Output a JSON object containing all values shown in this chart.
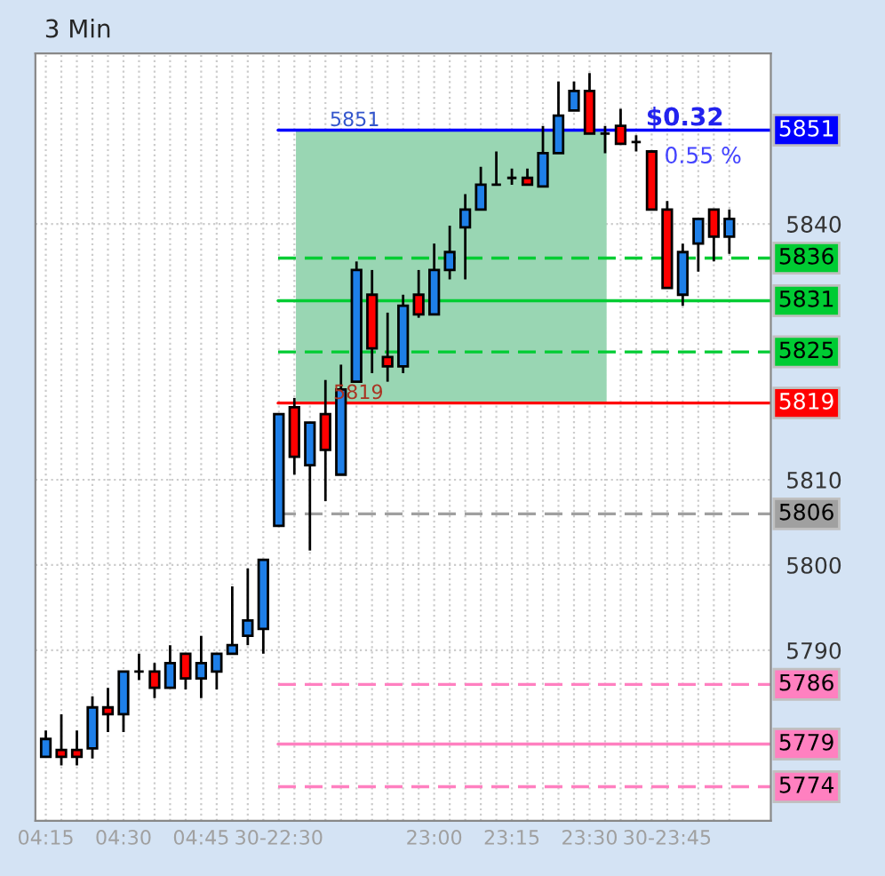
{
  "chart_data": {
    "type": "candlestick",
    "title": "3 Min",
    "categories": [
      "04:15",
      null,
      null,
      null,
      null,
      "04:30",
      null,
      null,
      null,
      null,
      "04:45",
      null,
      null,
      null,
      null,
      "30-22:30",
      null,
      null,
      null,
      null,
      null,
      null,
      null,
      null,
      null,
      "23:00",
      null,
      null,
      null,
      null,
      "23:15",
      null,
      null,
      null,
      null,
      "23:30",
      null,
      null,
      null,
      null,
      "30-23:45",
      null,
      null,
      null,
      null
    ],
    "ohlc": [
      [
        5777.5,
        5780.6,
        5777.5,
        5779.6
      ],
      [
        5778.3,
        5782.5,
        5776.5,
        5777.5
      ],
      [
        5778.3,
        5780.6,
        5776.5,
        5777.5
      ],
      [
        5778.5,
        5784.6,
        5777.3,
        5783.3
      ],
      [
        5783.3,
        5785.6,
        5780.4,
        5782.5
      ],
      [
        5782.5,
        5787.5,
        5780.4,
        5787.5
      ],
      [
        5787.5,
        5789.6,
        5786.5,
        5787.5
      ],
      [
        5787.5,
        5788.5,
        5784.4,
        5785.6
      ],
      [
        5785.6,
        5790.6,
        5785.6,
        5788.5
      ],
      [
        5789.6,
        5789.6,
        5785.4,
        5786.7
      ],
      [
        5786.7,
        5791.7,
        5784.4,
        5788.5
      ],
      [
        5787.5,
        5789.6,
        5785.4,
        5789.6
      ],
      [
        5789.6,
        5797.5,
        5789.6,
        5790.6
      ],
      [
        5791.7,
        5799.6,
        5790.6,
        5793.5
      ],
      [
        5792.5,
        5800.6,
        5789.6,
        5800.6
      ],
      [
        5804.6,
        5817.7,
        5804.6,
        5817.7
      ],
      [
        5818.5,
        5819.6,
        5810.6,
        5812.7
      ],
      [
        5811.7,
        5816.7,
        5801.7,
        5816.7
      ],
      [
        5817.7,
        5821.7,
        5807.5,
        5813.5
      ],
      [
        5810.6,
        5823.5,
        5810.6,
        5820.6
      ],
      [
        5821.5,
        5835.6,
        5821.5,
        5834.6
      ],
      [
        5831.7,
        5834.6,
        5822.5,
        5825.4
      ],
      [
        5824.4,
        5829.6,
        5821.5,
        5823.3
      ],
      [
        5823.3,
        5831.7,
        5822.5,
        5830.4
      ],
      [
        5831.7,
        5834.6,
        5829.0,
        5829.4
      ],
      [
        5829.4,
        5837.7,
        5829.4,
        5834.6
      ],
      [
        5834.6,
        5839.8,
        5833.5,
        5836.7
      ],
      [
        5839.6,
        5843.5,
        5833.5,
        5841.7
      ],
      [
        5841.7,
        5846.7,
        5841.7,
        5844.6
      ],
      [
        5844.6,
        5848.5,
        5844.6,
        5844.6
      ],
      [
        5845.4,
        5846.5,
        5844.6,
        5845.4
      ],
      [
        5845.4,
        5846.5,
        5844.6,
        5844.6
      ],
      [
        5844.4,
        5851.5,
        5844.4,
        5848.3
      ],
      [
        5848.3,
        5856.7,
        5848.3,
        5852.7
      ],
      [
        5853.3,
        5856.7,
        5853.3,
        5855.6
      ],
      [
        5855.6,
        5857.7,
        5850.6,
        5850.6
      ],
      [
        5850.6,
        5851.5,
        5848.3,
        5850.6
      ],
      [
        5851.5,
        5853.5,
        5849.4,
        5849.4
      ],
      [
        5849.6,
        5850.4,
        5848.5,
        5849.6
      ],
      [
        5848.5,
        5848.5,
        5841.7,
        5841.7
      ],
      [
        5841.7,
        5842.7,
        5832.5,
        5832.5
      ],
      [
        5831.7,
        5837.7,
        5830.4,
        5836.7
      ],
      [
        5837.7,
        5840.6,
        5834.4,
        5840.6
      ],
      [
        5841.7,
        5841.7,
        5835.6,
        5838.5
      ],
      [
        5838.5,
        5841.7,
        5836.5,
        5840.6
      ]
    ],
    "colors": [
      "#1e7fe8",
      "#ff0000",
      "#ff0000",
      "#1e7fe8",
      "#ff0000",
      "#1e7fe8",
      "#000000",
      "#ff0000",
      "#1e7fe8",
      "#ff0000",
      "#1e7fe8",
      "#1e7fe8",
      "#1e7fe8",
      "#1e7fe8",
      "#1e7fe8",
      "#1e7fe8",
      "#ff0000",
      "#1e7fe8",
      "#ff0000",
      "#1e7fe8",
      "#1e7fe8",
      "#ff0000",
      "#ff0000",
      "#1e7fe8",
      "#ff0000",
      "#1e7fe8",
      "#1e7fe8",
      "#1e7fe8",
      "#1e7fe8",
      "#000000",
      "#000000",
      "#ff0000",
      "#1e7fe8",
      "#1e7fe8",
      "#1e7fe8",
      "#ff0000",
      "#000000",
      "#ff0000",
      "#000000",
      "#ff0000",
      "#ff0000",
      "#1e7fe8",
      "#1e7fe8",
      "#ff0000",
      "#1e7fe8"
    ],
    "ylim": [
      5770,
      5860
    ],
    "yticks": [
      5790,
      5800,
      5810,
      5840
    ],
    "ref_lines": [
      {
        "axis": "y",
        "value": 5851,
        "label": "5851",
        "color": "#0000ff",
        "line_style": "solid"
      },
      {
        "axis": "y",
        "value": 5836,
        "label": "5836",
        "color": "#00cc33",
        "line_style": "dashed"
      },
      {
        "axis": "y",
        "value": 5831,
        "label": "5831",
        "color": "#00cc33",
        "line_style": "solid"
      },
      {
        "axis": "y",
        "value": 5825,
        "label": "5825",
        "color": "#00cc33",
        "line_style": "dashed"
      },
      {
        "axis": "y",
        "value": 5819,
        "label": "5819",
        "color": "#ff0000",
        "line_style": "solid"
      },
      {
        "axis": "y",
        "value": 5806,
        "label": "5806",
        "color": "#a0a0a0",
        "line_style": "dashed"
      },
      {
        "axis": "y",
        "value": 5786,
        "label": "5786",
        "color": "#ff80c0",
        "line_style": "dashed"
      },
      {
        "axis": "y",
        "value": 5779,
        "label": "5779",
        "color": "#ff80c0",
        "line_style": "solid"
      },
      {
        "axis": "y",
        "value": 5774,
        "label": "5774",
        "color": "#ff80c0",
        "line_style": "dashed"
      }
    ],
    "bands": [
      {
        "axis": "y",
        "from": 5819,
        "to": 5851,
        "color": "#99d6b3"
      }
    ],
    "annotations": [
      {
        "text": "5851",
        "y": 5851
      },
      {
        "text": "5819",
        "y": 5819
      },
      "$0.32",
      "0.55 %"
    ],
    "grid": true
  }
}
